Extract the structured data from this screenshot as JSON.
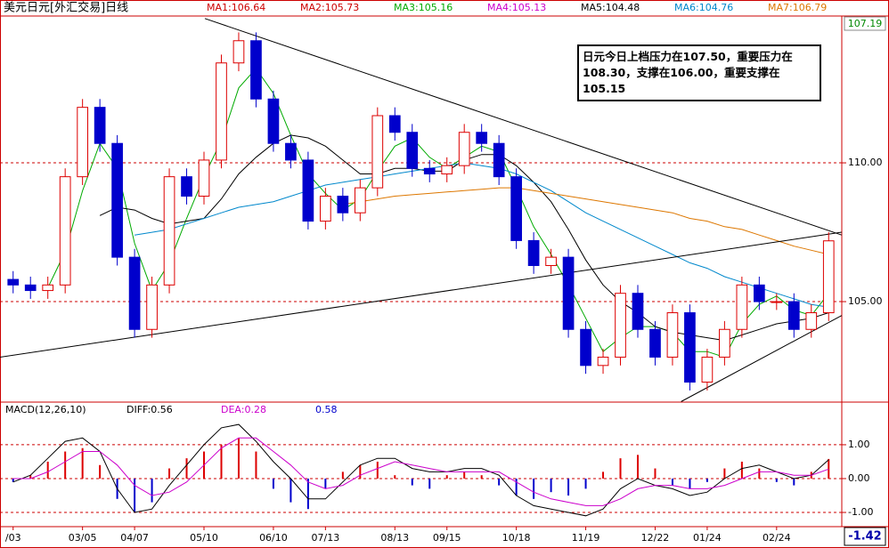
{
  "chart_data": {
    "type": "candlestick",
    "title": "美元日元[外汇交易]日线",
    "ma_labels": [
      {
        "text": "MA1:106.64",
        "color": "#cc0000"
      },
      {
        "text": "MA2:105.73",
        "color": "#cc0000"
      },
      {
        "text": "MA3:105.16",
        "color": "#00aa00"
      },
      {
        "text": "MA4:105.13",
        "color": "#cc00cc"
      },
      {
        "text": "MA5:104.48",
        "color": "#000000"
      },
      {
        "text": "MA6:104.76",
        "color": "#0088cc"
      },
      {
        "text": "MA7:106.79",
        "color": "#dd7700"
      }
    ],
    "categories": [
      "/03",
      null,
      null,
      null,
      "03/05",
      null,
      null,
      "04/07",
      null,
      null,
      null,
      "05/10",
      null,
      null,
      null,
      "06/10",
      null,
      null,
      "07/13",
      null,
      null,
      null,
      "08/13",
      null,
      null,
      "09/15",
      null,
      null,
      null,
      "10/18",
      null,
      null,
      null,
      "11/19",
      null,
      null,
      null,
      "12/22",
      null,
      null,
      "01/24",
      null,
      null,
      null,
      "02/24",
      null,
      null,
      null
    ],
    "open": [
      105.8,
      105.6,
      105.4,
      105.6,
      109.5,
      112.0,
      110.7,
      106.6,
      104.0,
      105.6,
      109.5,
      108.8,
      110.1,
      113.6,
      114.4,
      112.3,
      110.7,
      110.1,
      107.9,
      108.8,
      108.2,
      109.1,
      111.7,
      111.1,
      109.8,
      109.6,
      109.9,
      111.1,
      110.7,
      109.5,
      107.2,
      106.3,
      106.6,
      104.0,
      102.7,
      103.0,
      105.3,
      104.0,
      103.0,
      104.6,
      102.1,
      103.0,
      104.0,
      105.6,
      105.0,
      105.0,
      104.0,
      104.6
    ],
    "high": [
      106.1,
      105.9,
      105.9,
      109.8,
      112.3,
      112.3,
      111.0,
      106.9,
      105.9,
      109.8,
      109.8,
      110.4,
      113.9,
      114.7,
      114.7,
      112.6,
      111.0,
      110.4,
      109.1,
      109.1,
      109.4,
      112.0,
      112.0,
      111.4,
      110.1,
      110.2,
      111.4,
      111.4,
      111.0,
      109.8,
      107.5,
      106.9,
      106.9,
      104.3,
      103.3,
      105.6,
      105.6,
      104.3,
      104.9,
      104.9,
      103.3,
      104.3,
      105.9,
      105.9,
      105.3,
      105.3,
      104.9,
      107.5
    ],
    "low": [
      105.3,
      105.1,
      105.1,
      105.3,
      109.2,
      110.4,
      106.3,
      103.7,
      103.7,
      105.3,
      108.5,
      108.5,
      109.8,
      113.3,
      112.0,
      110.4,
      109.8,
      107.6,
      107.6,
      107.9,
      107.9,
      108.8,
      110.8,
      109.5,
      109.3,
      109.3,
      109.6,
      110.4,
      109.2,
      106.9,
      106.0,
      106.0,
      103.7,
      102.4,
      102.4,
      102.7,
      103.7,
      102.7,
      102.7,
      101.8,
      101.8,
      102.7,
      103.7,
      104.7,
      104.7,
      103.7,
      103.7,
      104.3
    ],
    "close": [
      105.6,
      105.4,
      105.6,
      109.5,
      112.0,
      110.7,
      106.6,
      104.0,
      105.6,
      109.5,
      108.8,
      110.1,
      113.6,
      114.4,
      112.3,
      110.7,
      110.1,
      107.9,
      108.8,
      108.2,
      109.1,
      111.7,
      111.1,
      109.8,
      109.6,
      109.9,
      111.1,
      110.7,
      109.5,
      107.2,
      106.3,
      106.6,
      104.0,
      102.7,
      103.0,
      105.3,
      104.0,
      103.0,
      104.6,
      102.1,
      103.0,
      104.0,
      105.6,
      105.0,
      105.0,
      104.0,
      104.6,
      107.19
    ],
    "up_color": "#dd0000",
    "down_color": "#0000cc",
    "lines": [
      {
        "color": "#00aa00",
        "values": [
          null,
          null,
          105.5,
          106.8,
          109.0,
          110.7,
          109.8,
          107.1,
          105.4,
          106.4,
          108.0,
          109.5,
          110.8,
          112.7,
          113.4,
          112.5,
          111.0,
          109.6,
          108.9,
          108.3,
          108.7,
          109.7,
          110.6,
          110.9,
          110.2,
          109.8,
          110.2,
          110.6,
          110.4,
          109.1,
          107.7,
          106.7,
          105.6,
          104.4,
          103.2,
          103.7,
          104.1,
          104.1,
          103.9,
          103.2,
          103.2,
          103.0,
          104.2,
          104.9,
          105.2,
          104.7,
          104.5,
          105.3
        ]
      },
      {
        "color": "#000000",
        "values": [
          null,
          null,
          null,
          null,
          null,
          108.1,
          108.4,
          108.3,
          108.0,
          107.8,
          107.9,
          108.0,
          108.7,
          109.6,
          110.2,
          110.7,
          111.0,
          110.9,
          110.6,
          110.1,
          109.6,
          109.6,
          109.8,
          109.8,
          109.7,
          109.7,
          110.1,
          110.3,
          110.3,
          109.9,
          109.3,
          108.6,
          107.6,
          106.5,
          105.6,
          105.0,
          104.6,
          104.1,
          103.9,
          103.8,
          103.7,
          103.6,
          103.8,
          104.0,
          104.2,
          104.3,
          104.4,
          104.6
        ]
      },
      {
        "color": "#0088cc",
        "values": [
          null,
          null,
          null,
          null,
          null,
          null,
          null,
          107.4,
          107.5,
          107.6,
          107.8,
          108.0,
          108.2,
          108.4,
          108.5,
          108.6,
          108.8,
          109.0,
          109.2,
          109.3,
          109.4,
          109.5,
          109.6,
          109.7,
          109.8,
          109.9,
          110.0,
          109.9,
          109.8,
          109.6,
          109.3,
          109.0,
          108.6,
          108.2,
          107.9,
          107.6,
          107.3,
          107.0,
          106.7,
          106.4,
          106.2,
          105.9,
          105.7,
          105.5,
          105.3,
          105.1,
          104.9,
          104.8
        ]
      },
      {
        "color": "#dd7700",
        "values": [
          null,
          null,
          null,
          null,
          null,
          null,
          null,
          null,
          null,
          null,
          null,
          null,
          null,
          null,
          null,
          null,
          null,
          null,
          null,
          108.5,
          108.6,
          108.7,
          108.8,
          108.85,
          108.9,
          108.95,
          109.0,
          109.05,
          109.1,
          109.1,
          109.0,
          108.9,
          108.8,
          108.7,
          108.6,
          108.5,
          108.4,
          108.3,
          108.2,
          108.0,
          107.9,
          107.7,
          107.6,
          107.4,
          107.2,
          107.0,
          106.85,
          106.7
        ]
      }
    ],
    "trendlines": [
      {
        "x": [
          11.05,
          47.75
        ],
        "y": [
          115.2,
          107.4
        ]
      },
      {
        "x": [
          -0.76,
          47.75
        ],
        "y": [
          103.0,
          107.5
        ]
      },
      {
        "x": [
          38.5,
          47.75
        ],
        "y": [
          101.4,
          104.5
        ]
      }
    ],
    "ylim": [
      101.38,
      115.29
    ],
    "yticks": [
      {
        "value": 110,
        "label": "110.00"
      },
      {
        "value": 105,
        "label": "105.00"
      }
    ],
    "last_price": 107.19,
    "annotation": "日元今日上档压力在107.50，重要压力在108.30，支撑在106.00，重要支撑在105.15",
    "macd": {
      "label": "MACD(12,26,10)",
      "diff_label": "DIFF:0.56",
      "dea_label": "DEA:0.28",
      "value_label": "0.58",
      "ylim": [
        -1.42,
        2.26
      ],
      "yticks": [
        {
          "value": 1,
          "label": "1.00"
        },
        {
          "value": 0,
          "label": "0.00"
        },
        {
          "value": -1,
          "label": "-1.00"
        }
      ],
      "hist": [
        -0.1,
        0.1,
        0.5,
        0.8,
        0.9,
        0.4,
        -0.6,
        -1.0,
        -0.7,
        0.3,
        0.6,
        0.8,
        1.0,
        1.2,
        0.8,
        -0.3,
        -0.7,
        -0.9,
        -0.3,
        0.2,
        0.4,
        0.5,
        0.1,
        -0.2,
        -0.3,
        0.1,
        0.2,
        0.1,
        -0.2,
        -0.5,
        -0.6,
        -0.4,
        -0.5,
        -0.3,
        0.2,
        0.6,
        0.7,
        0.3,
        -0.2,
        -0.3,
        -0.1,
        0.3,
        0.5,
        0.3,
        -0.1,
        -0.2,
        0.2,
        0.58
      ],
      "diff": [
        -0.1,
        0.1,
        0.6,
        1.1,
        1.2,
        0.8,
        -0.3,
        -1.0,
        -0.9,
        -0.2,
        0.4,
        1.0,
        1.5,
        1.6,
        1.1,
        0.5,
        0.0,
        -0.6,
        -0.6,
        -0.1,
        0.4,
        0.6,
        0.6,
        0.3,
        0.2,
        0.2,
        0.3,
        0.3,
        0.1,
        -0.5,
        -0.8,
        -0.9,
        -1.0,
        -1.1,
        -0.9,
        -0.3,
        0.0,
        -0.2,
        -0.3,
        -0.5,
        -0.4,
        0.0,
        0.3,
        0.4,
        0.2,
        0.0,
        0.1,
        0.56
      ],
      "dea": [
        0.0,
        0.0,
        0.2,
        0.5,
        0.8,
        0.8,
        0.4,
        -0.2,
        -0.5,
        -0.4,
        -0.1,
        0.4,
        0.9,
        1.2,
        1.2,
        0.8,
        0.4,
        -0.1,
        -0.3,
        -0.2,
        0.1,
        0.3,
        0.5,
        0.4,
        0.3,
        0.2,
        0.2,
        0.2,
        0.2,
        -0.1,
        -0.4,
        -0.6,
        -0.7,
        -0.8,
        -0.8,
        -0.6,
        -0.3,
        -0.2,
        -0.2,
        -0.3,
        -0.3,
        -0.2,
        0.0,
        0.2,
        0.2,
        0.1,
        0.1,
        0.28
      ],
      "diff_color": "#000000",
      "dea_color": "#cc00cc",
      "value_color": "#0000cc",
      "cursor_value": -1.42
    }
  }
}
